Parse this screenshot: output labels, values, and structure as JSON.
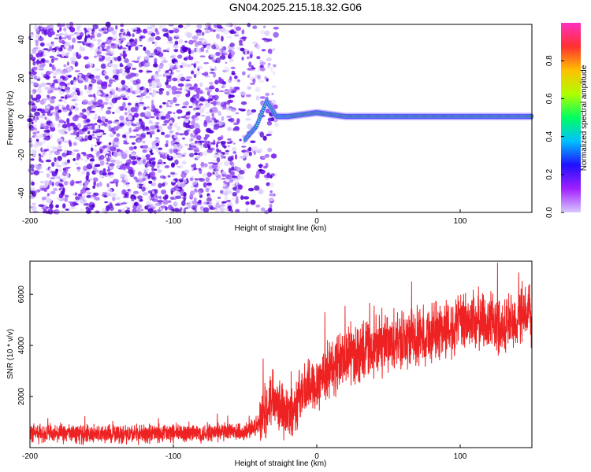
{
  "title": "GN04.2025.215.18.32.G06",
  "chart_data": [
    {
      "type": "heatmap",
      "xlabel": "Height of straight line (km)",
      "ylabel": "Frequency (Hz)",
      "xlim": [
        -200,
        150
      ],
      "ylim": [
        -50,
        48
      ],
      "xticks": [
        -200,
        -100,
        0,
        100
      ],
      "yticks": [
        -40,
        -20,
        0,
        20,
        40
      ],
      "colorbar": {
        "label": "Normalized spectral amplitude",
        "range": [
          0,
          1
        ],
        "ticks": [
          "0.0",
          "0.2",
          "0.4",
          "0.6",
          "0.8"
        ],
        "colors": [
          "#d8c8ff",
          "#a020ff",
          "#2010ff",
          "#00c0ff",
          "#00ff60",
          "#b0ff00",
          "#ffc000",
          "#ff3030",
          "#ff30c0"
        ]
      },
      "ridge": {
        "description_points": [
          {
            "x": -50,
            "y": -12
          },
          {
            "x": -42,
            "y": -5
          },
          {
            "x": -35,
            "y": 8
          },
          {
            "x": -28,
            "y": 0
          },
          {
            "x": -20,
            "y": 0
          },
          {
            "x": 0,
            "y": 2
          },
          {
            "x": 20,
            "y": 0
          },
          {
            "x": 150,
            "y": 0
          }
        ]
      },
      "noise_region_x": [
        -200,
        -28
      ]
    },
    {
      "type": "line",
      "xlabel": "Height of straight line (km)",
      "ylabel": "SNR (10 * v/v)",
      "xlim": [
        -200,
        150
      ],
      "ylim": [
        0,
        7300
      ],
      "xticks": [
        -200,
        -100,
        0,
        100
      ],
      "yticks": [
        2000,
        4000,
        6000
      ],
      "color": "#ee2222",
      "trend": [
        {
          "x": -200,
          "y": 550
        },
        {
          "x": -150,
          "y": 520
        },
        {
          "x": -100,
          "y": 560
        },
        {
          "x": -50,
          "y": 600
        },
        {
          "x": -40,
          "y": 900
        },
        {
          "x": -30,
          "y": 2200
        },
        {
          "x": -20,
          "y": 1200
        },
        {
          "x": -10,
          "y": 2200
        },
        {
          "x": 0,
          "y": 2600
        },
        {
          "x": 20,
          "y": 3600
        },
        {
          "x": 50,
          "y": 4000
        },
        {
          "x": 80,
          "y": 4500
        },
        {
          "x": 110,
          "y": 5000
        },
        {
          "x": 130,
          "y": 4800
        },
        {
          "x": 150,
          "y": 5200
        }
      ]
    }
  ]
}
